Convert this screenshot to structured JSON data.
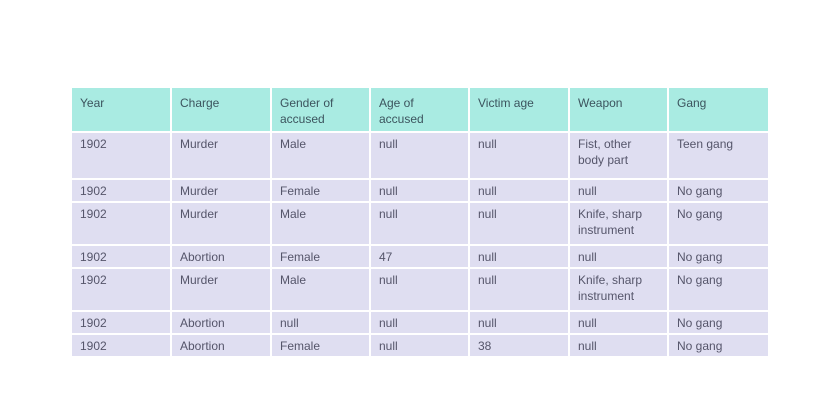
{
  "table": {
    "columns": [
      "Year",
      "Charge",
      "Gender of accused",
      "Age of accused",
      "Victim age",
      "Weapon",
      "Gang"
    ],
    "rows": [
      [
        "1902",
        "Murder",
        "Male",
        "null",
        "null",
        "Fist, other body part",
        "Teen gang"
      ],
      [
        "1902",
        "Murder",
        "Female",
        "null",
        "null",
        "null",
        "No gang"
      ],
      [
        "1902",
        "Murder",
        "Male",
        "null",
        "null",
        "Knife, sharp instrument",
        "No gang"
      ],
      [
        "1902",
        "Abortion",
        "Female",
        "47",
        "null",
        "null",
        "No gang"
      ],
      [
        "1902",
        "Murder",
        "Male",
        "null",
        "null",
        "Knife, sharp instrument",
        "No gang"
      ],
      [
        "1902",
        "Abortion",
        "null",
        "null",
        "null",
        "null",
        "No gang"
      ],
      [
        "1902",
        "Abortion",
        "Female",
        "null",
        "38",
        "null",
        "No gang"
      ]
    ],
    "colors": {
      "header_bg": "#a9ebe2",
      "row_bg": "#dfdef1",
      "header_text": "#3c545e",
      "body_text": "#55556a",
      "grid": "#ffffff",
      "page_bg": "#ffffff"
    }
  }
}
